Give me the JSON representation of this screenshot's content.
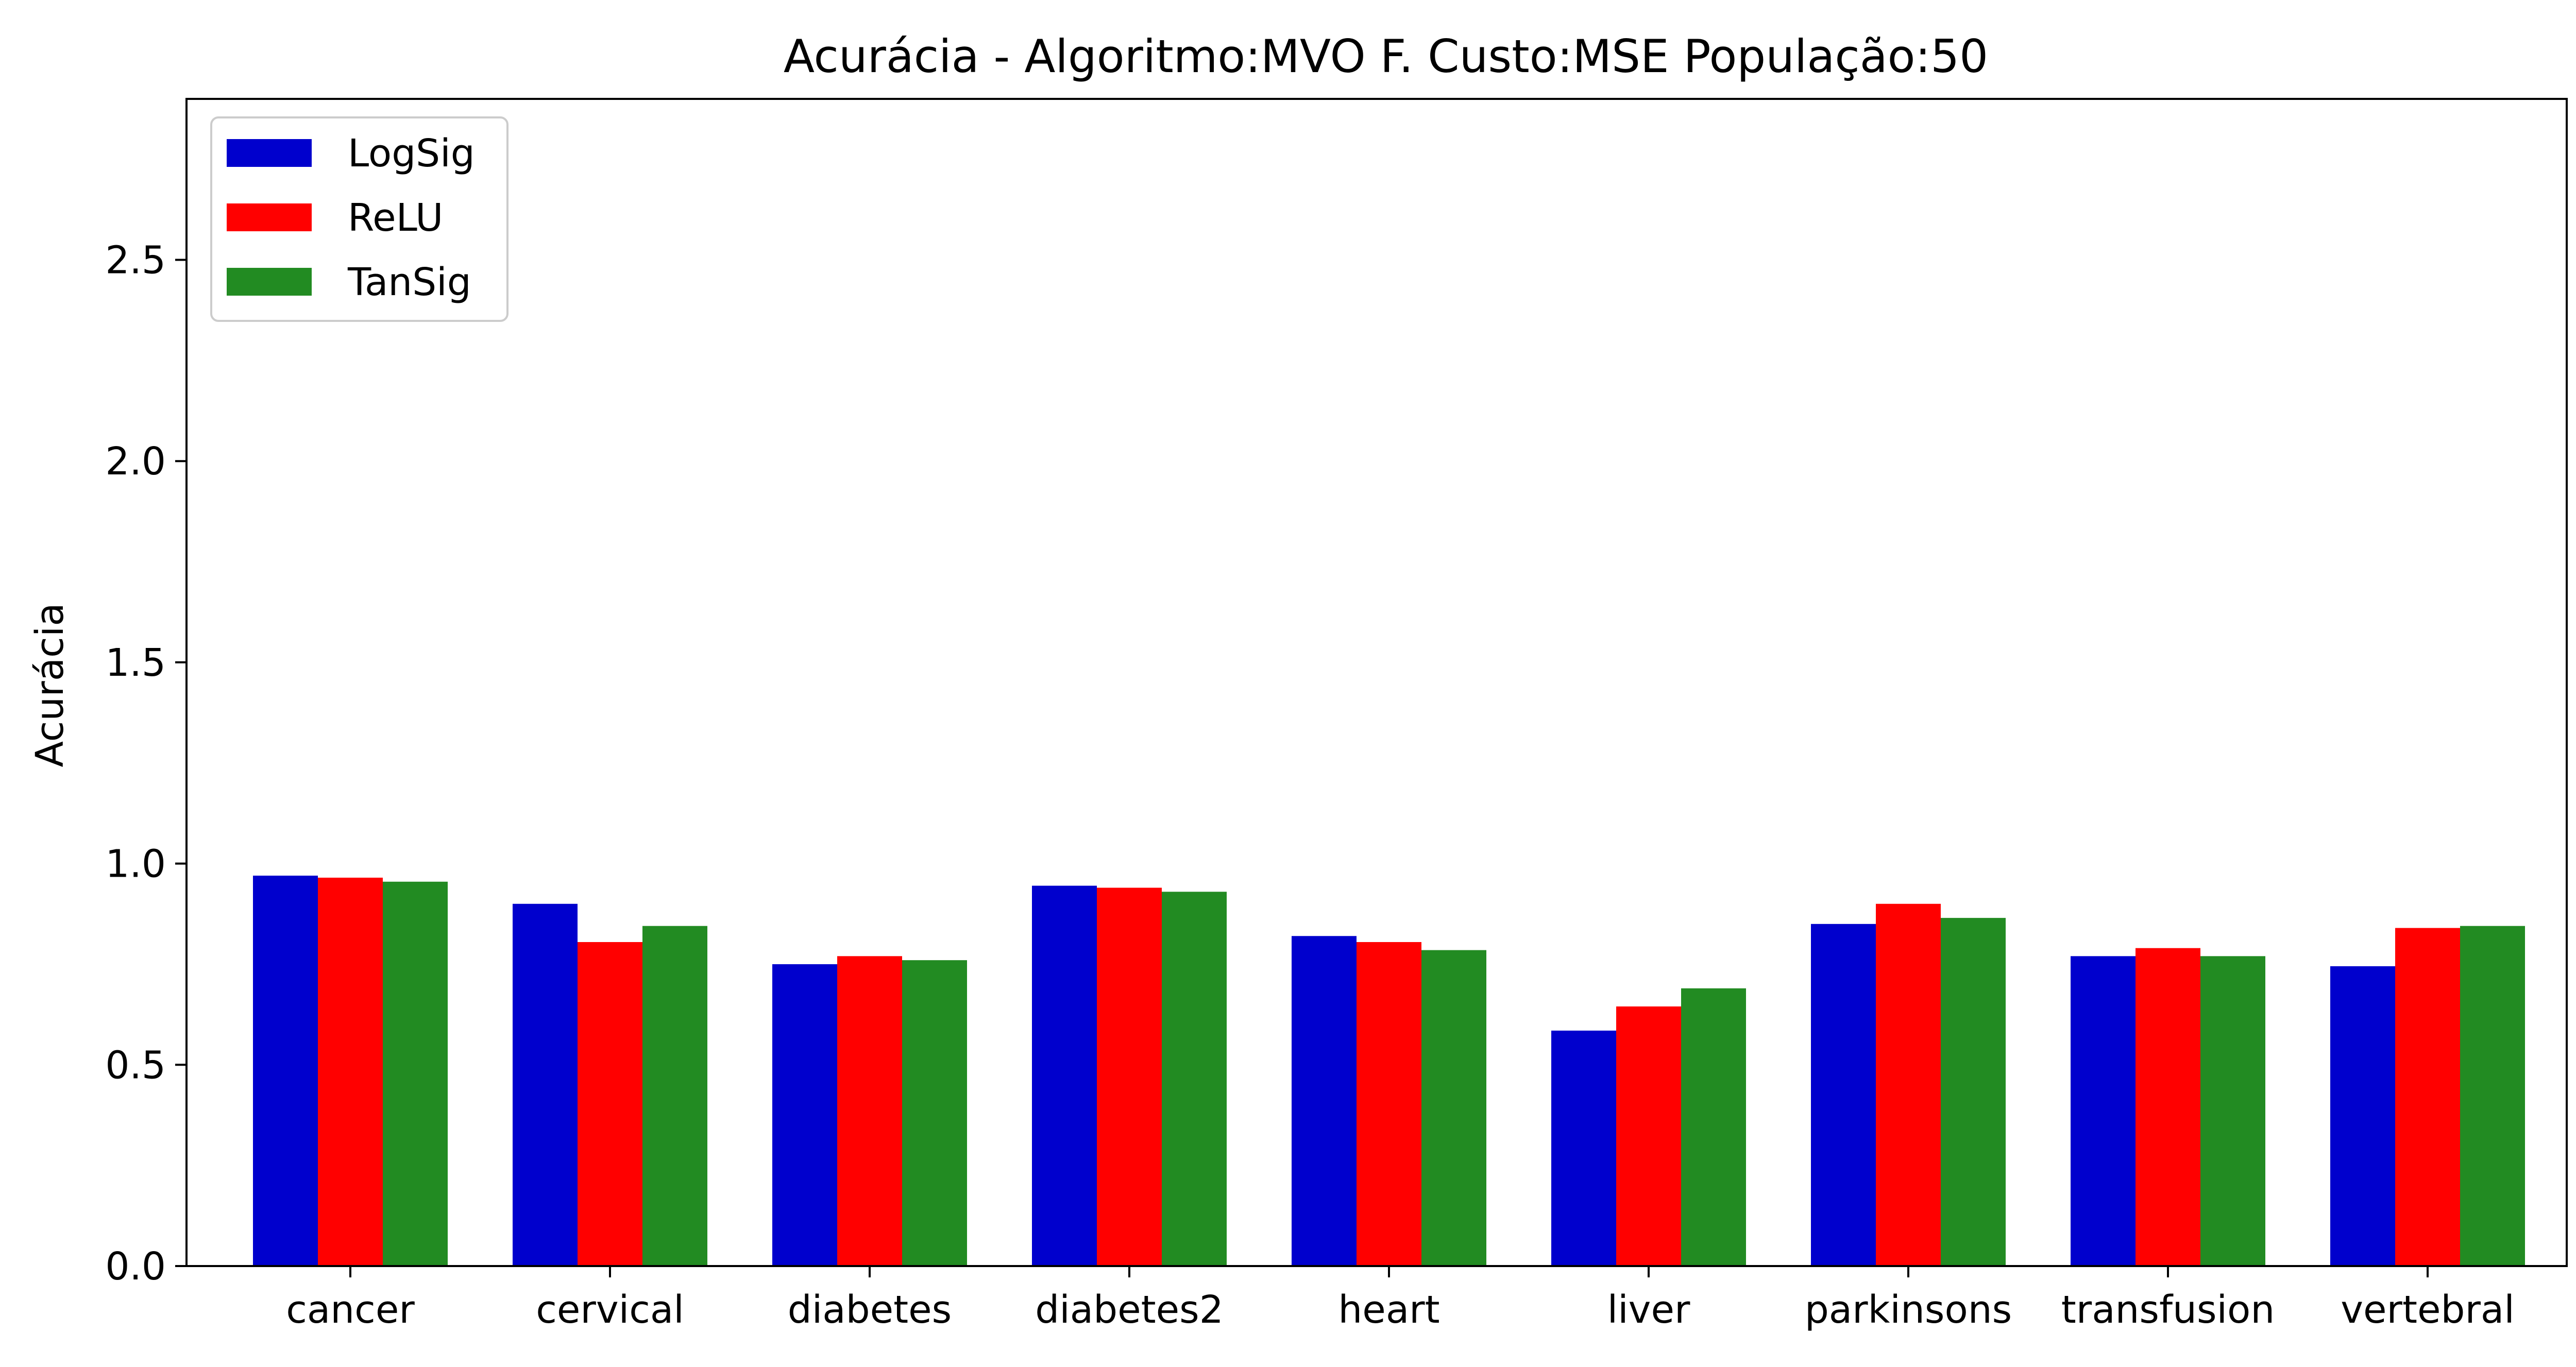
{
  "chart_data": {
    "type": "bar",
    "title": "Acurácia - Algoritmo:MVO F. Custo:MSE População:50",
    "xlabel": "",
    "ylabel": "Acurácia",
    "ylim": [
      0,
      2.9
    ],
    "yticks": [
      "0.0",
      "0.5",
      "1.0",
      "1.5",
      "2.0",
      "2.5"
    ],
    "categories": [
      "cancer",
      "cervical",
      "diabetes",
      "diabetes2",
      "heart",
      "liver",
      "parkinsons",
      "transfusion",
      "vertebral"
    ],
    "series": [
      {
        "name": "LogSig",
        "color": "#0000cd",
        "values": [
          0.97,
          0.9,
          0.75,
          0.945,
          0.82,
          0.585,
          0.85,
          0.77,
          0.745
        ]
      },
      {
        "name": "ReLU",
        "color": "#ff0000",
        "values": [
          0.965,
          0.805,
          0.77,
          0.94,
          0.805,
          0.645,
          0.9,
          0.79,
          0.84
        ]
      },
      {
        "name": "TanSig",
        "color": "#228b22",
        "values": [
          0.955,
          0.845,
          0.76,
          0.93,
          0.785,
          0.69,
          0.865,
          0.77,
          0.845
        ]
      }
    ],
    "grid": false,
    "legend_position": "top-left"
  }
}
